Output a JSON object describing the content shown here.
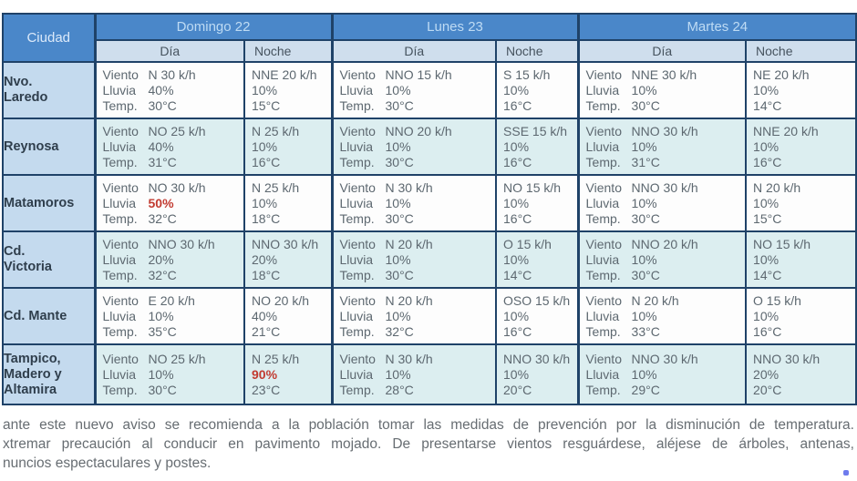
{
  "table": {
    "city_header": "Ciudad",
    "day_headers": [
      "Domingo 22",
      "Lunes 23",
      "Martes 24"
    ],
    "sub_headers": {
      "dia": "Día",
      "noche": "Noche"
    },
    "row_labels": {
      "viento": "Viento",
      "lluvia": "Lluvia",
      "temp": "Temp."
    },
    "rows": [
      {
        "city": "Nvo.\nLaredo",
        "cells": [
          {
            "type": "dia",
            "viento": "N 30 k/h",
            "lluvia": "40%",
            "temp": "30°C",
            "red": ""
          },
          {
            "type": "noche",
            "viento": "NNE 20 k/h",
            "lluvia": "10%",
            "temp": "15°C",
            "red": ""
          },
          {
            "type": "dia",
            "viento": "NNO 15 k/h",
            "lluvia": "10%",
            "temp": "30°C",
            "red": ""
          },
          {
            "type": "noche",
            "viento": "S 15 k/h",
            "lluvia": "10%",
            "temp": "16°C",
            "red": ""
          },
          {
            "type": "dia",
            "viento": "NNE 30 k/h",
            "lluvia": "10%",
            "temp": "30°C",
            "red": ""
          },
          {
            "type": "noche",
            "viento": "NE 20 k/h",
            "lluvia": "10%",
            "temp": "14°C",
            "red": ""
          }
        ]
      },
      {
        "city": "Reynosa",
        "cells": [
          {
            "type": "dia",
            "viento": "NO 25 k/h",
            "lluvia": "40%",
            "temp": "31°C",
            "red": ""
          },
          {
            "type": "noche",
            "viento": "N 25 k/h",
            "lluvia": "10%",
            "temp": "16°C",
            "red": ""
          },
          {
            "type": "dia",
            "viento": "NNO 20 k/h",
            "lluvia": "10%",
            "temp": "30°C",
            "red": ""
          },
          {
            "type": "noche",
            "viento": "SSE 15 k/h",
            "lluvia": "10%",
            "temp": "16°C",
            "red": ""
          },
          {
            "type": "dia",
            "viento": "NNO 30 k/h",
            "lluvia": "10%",
            "temp": "31°C",
            "red": ""
          },
          {
            "type": "noche",
            "viento": "NNE 20 k/h",
            "lluvia": "10%",
            "temp": "16°C",
            "red": ""
          }
        ]
      },
      {
        "city": "Matamoros",
        "cells": [
          {
            "type": "dia",
            "viento": "NO 30 k/h",
            "lluvia": "50%",
            "temp": "32°C",
            "red": "lluvia"
          },
          {
            "type": "noche",
            "viento": "N 25 k/h",
            "lluvia": "10%",
            "temp": "18°C",
            "red": ""
          },
          {
            "type": "dia",
            "viento": "N 30 k/h",
            "lluvia": "10%",
            "temp": "30°C",
            "red": ""
          },
          {
            "type": "noche",
            "viento": "NO 15 k/h",
            "lluvia": "10%",
            "temp": "16°C",
            "red": ""
          },
          {
            "type": "dia",
            "viento": "NNO 30 k/h",
            "lluvia": "10%",
            "temp": "30°C",
            "red": ""
          },
          {
            "type": "noche",
            "viento": "N 20 k/h",
            "lluvia": "10%",
            "temp": "15°C",
            "red": ""
          }
        ]
      },
      {
        "city": "Cd.\nVictoria",
        "cells": [
          {
            "type": "dia",
            "viento": "NNO 30 k/h",
            "lluvia": "20%",
            "temp": "32°C",
            "red": ""
          },
          {
            "type": "noche",
            "viento": "NNO 30 k/h",
            "lluvia": "20%",
            "temp": "18°C",
            "red": ""
          },
          {
            "type": "dia",
            "viento": "N 20 k/h",
            "lluvia": "10%",
            "temp": "30°C",
            "red": ""
          },
          {
            "type": "noche",
            "viento": "O 15 k/h",
            "lluvia": "10%",
            "temp": "14°C",
            "red": ""
          },
          {
            "type": "dia",
            "viento": "NNO 20 k/h",
            "lluvia": "10%",
            "temp": "30°C",
            "red": ""
          },
          {
            "type": "noche",
            "viento": "NO 15 k/h",
            "lluvia": "10%",
            "temp": "14°C",
            "red": ""
          }
        ]
      },
      {
        "city": "Cd. Mante",
        "cells": [
          {
            "type": "dia",
            "viento": "E 20 k/h",
            "lluvia": "10%",
            "temp": "35°C",
            "red": ""
          },
          {
            "type": "noche",
            "viento": "NO 20 k/h",
            "lluvia": "40%",
            "temp": "21°C",
            "red": ""
          },
          {
            "type": "dia",
            "viento": "N 20 k/h",
            "lluvia": "10%",
            "temp": "32°C",
            "red": ""
          },
          {
            "type": "noche",
            "viento": "OSO 15 k/h",
            "lluvia": "10%",
            "temp": "16°C",
            "red": ""
          },
          {
            "type": "dia",
            "viento": "N 20 k/h",
            "lluvia": "10%",
            "temp": "33°C",
            "red": ""
          },
          {
            "type": "noche",
            "viento": "O 15 k/h",
            "lluvia": "10%",
            "temp": "16°C",
            "red": ""
          }
        ]
      },
      {
        "city": "Tampico,\nMadero y\nAltamira",
        "cells": [
          {
            "type": "dia",
            "viento": "NO 25 k/h",
            "lluvia": "10%",
            "temp": "30°C",
            "red": ""
          },
          {
            "type": "noche",
            "viento": "N 25 k/h",
            "lluvia": "90%",
            "temp": "23°C",
            "red": "lluvia"
          },
          {
            "type": "dia",
            "viento": "N 30 k/h",
            "lluvia": "10%",
            "temp": "28°C",
            "red": ""
          },
          {
            "type": "noche",
            "viento": "NNO 30 k/h",
            "lluvia": "10%",
            "temp": "20°C",
            "red": ""
          },
          {
            "type": "dia",
            "viento": "NNO 30 k/h",
            "lluvia": "10%",
            "temp": "29°C",
            "red": ""
          },
          {
            "type": "noche",
            "viento": "NNO 30 k/h",
            "lluvia": "20%",
            "temp": "20°C",
            "red": ""
          }
        ]
      }
    ]
  },
  "footer": {
    "lines": [
      "ante este nuevo aviso se recomienda a la población tomar las medidas de prevención por la disminución de temperatura.",
      "xtremar precaución al conducir en pavimento mojado. De presentarse vientos resguárdese, aléjese de árboles, antenas,",
      "nuncios espectaculares y postes."
    ]
  },
  "colors": {
    "header_blue": "#4a87c9",
    "subheader_blue": "#cfdeed",
    "city_column_blue": "#c4daee",
    "row_tint": "#dceef0",
    "border_navy": "#1f4268",
    "alert_red": "#c23b31",
    "body_text_gray": "#5d6870"
  }
}
